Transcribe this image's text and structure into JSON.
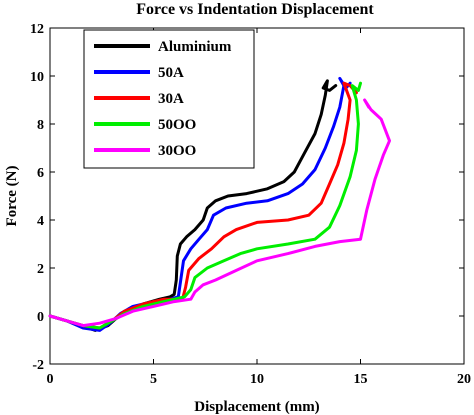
{
  "chart_data": {
    "type": "line",
    "title": "Force vs Indentation Displacement",
    "xlabel": "Displacement (mm)",
    "ylabel": "Force (N)",
    "xlim": [
      0,
      20
    ],
    "ylim": [
      -2,
      12
    ],
    "x_ticks": [
      "0",
      "5",
      "10",
      "15",
      "20"
    ],
    "y_ticks": [
      "-2",
      "0",
      "2",
      "4",
      "6",
      "8",
      "10",
      "12"
    ],
    "legend_position": "top-left",
    "grid": false,
    "series": [
      {
        "name": "Aluminium",
        "color": "#000000",
        "points": [
          [
            0,
            0
          ],
          [
            0.8,
            -0.2
          ],
          [
            1.5,
            -0.4
          ],
          [
            2.2,
            -0.6
          ],
          [
            2.8,
            -0.4
          ],
          [
            3.2,
            -0.1
          ],
          [
            3.8,
            0.2
          ],
          [
            4.5,
            0.5
          ],
          [
            5.3,
            0.7
          ],
          [
            5.8,
            0.8
          ],
          [
            6.0,
            0.9
          ],
          [
            6.1,
            1.5
          ],
          [
            6.15,
            2.5
          ],
          [
            6.3,
            3.0
          ],
          [
            6.6,
            3.3
          ],
          [
            7.0,
            3.6
          ],
          [
            7.4,
            4.0
          ],
          [
            7.6,
            4.5
          ],
          [
            8.0,
            4.8
          ],
          [
            8.6,
            5.0
          ],
          [
            9.5,
            5.1
          ],
          [
            10.5,
            5.3
          ],
          [
            11.3,
            5.6
          ],
          [
            11.8,
            6.0
          ],
          [
            12.3,
            6.8
          ],
          [
            12.8,
            7.6
          ],
          [
            13.1,
            8.4
          ],
          [
            13.3,
            9.2
          ],
          [
            13.4,
            9.8
          ],
          [
            13.2,
            9.5
          ],
          [
            13.5,
            9.4
          ],
          [
            13.8,
            9.6
          ]
        ]
      },
      {
        "name": "50A",
        "color": "#0000ff",
        "points": [
          [
            0,
            0
          ],
          [
            0.8,
            -0.2
          ],
          [
            1.6,
            -0.5
          ],
          [
            2.4,
            -0.6
          ],
          [
            2.9,
            -0.3
          ],
          [
            3.4,
            0.1
          ],
          [
            4.0,
            0.4
          ],
          [
            5.0,
            0.6
          ],
          [
            5.8,
            0.7
          ],
          [
            6.2,
            0.8
          ],
          [
            6.3,
            1.4
          ],
          [
            6.45,
            2.3
          ],
          [
            6.8,
            2.8
          ],
          [
            7.2,
            3.2
          ],
          [
            7.6,
            3.6
          ],
          [
            7.9,
            4.2
          ],
          [
            8.5,
            4.5
          ],
          [
            9.5,
            4.7
          ],
          [
            10.5,
            4.8
          ],
          [
            11.5,
            5.1
          ],
          [
            12.2,
            5.5
          ],
          [
            12.8,
            6.1
          ],
          [
            13.3,
            7.0
          ],
          [
            13.7,
            7.9
          ],
          [
            14.0,
            8.7
          ],
          [
            14.2,
            9.6
          ],
          [
            14.0,
            9.9
          ],
          [
            14.3,
            9.5
          ],
          [
            14.5,
            9.7
          ]
        ]
      },
      {
        "name": "30A",
        "color": "#ff0000",
        "points": [
          [
            0,
            0
          ],
          [
            0.8,
            -0.2
          ],
          [
            1.6,
            -0.4
          ],
          [
            2.4,
            -0.5
          ],
          [
            3.0,
            -0.2
          ],
          [
            3.6,
            0.2
          ],
          [
            4.5,
            0.5
          ],
          [
            5.5,
            0.7
          ],
          [
            6.4,
            0.7
          ],
          [
            6.55,
            1.2
          ],
          [
            6.7,
            1.9
          ],
          [
            7.2,
            2.4
          ],
          [
            7.8,
            2.8
          ],
          [
            8.4,
            3.3
          ],
          [
            9.0,
            3.6
          ],
          [
            10.0,
            3.9
          ],
          [
            11.5,
            4.0
          ],
          [
            12.5,
            4.2
          ],
          [
            13.1,
            4.7
          ],
          [
            13.5,
            5.5
          ],
          [
            13.9,
            6.3
          ],
          [
            14.2,
            7.2
          ],
          [
            14.4,
            8.2
          ],
          [
            14.5,
            9.0
          ],
          [
            14.2,
            9.7
          ],
          [
            14.5,
            9.6
          ],
          [
            14.8,
            9.3
          ]
        ]
      },
      {
        "name": "50OO",
        "color": "#00ee00",
        "points": [
          [
            0,
            0
          ],
          [
            0.8,
            -0.2
          ],
          [
            1.6,
            -0.4
          ],
          [
            2.4,
            -0.5
          ],
          [
            3.0,
            -0.2
          ],
          [
            3.6,
            0.1
          ],
          [
            4.5,
            0.4
          ],
          [
            5.5,
            0.6
          ],
          [
            6.5,
            0.8
          ],
          [
            6.8,
            1.1
          ],
          [
            7.0,
            1.6
          ],
          [
            7.6,
            2.0
          ],
          [
            8.4,
            2.3
          ],
          [
            9.2,
            2.6
          ],
          [
            10.0,
            2.8
          ],
          [
            11.5,
            3.0
          ],
          [
            12.8,
            3.2
          ],
          [
            13.5,
            3.7
          ],
          [
            14.0,
            4.6
          ],
          [
            14.5,
            5.8
          ],
          [
            14.8,
            6.9
          ],
          [
            14.9,
            8.0
          ],
          [
            14.8,
            9.0
          ],
          [
            14.6,
            9.6
          ],
          [
            14.9,
            9.4
          ],
          [
            15.0,
            9.7
          ]
        ]
      },
      {
        "name": "30OO",
        "color": "#ff00ff",
        "points": [
          [
            0,
            0
          ],
          [
            0.8,
            -0.2
          ],
          [
            1.6,
            -0.4
          ],
          [
            2.4,
            -0.3
          ],
          [
            3.2,
            -0.1
          ],
          [
            4.0,
            0.2
          ],
          [
            5.0,
            0.4
          ],
          [
            6.0,
            0.6
          ],
          [
            6.8,
            0.7
          ],
          [
            7.0,
            1.0
          ],
          [
            7.4,
            1.3
          ],
          [
            8.0,
            1.5
          ],
          [
            9.0,
            1.9
          ],
          [
            10.0,
            2.3
          ],
          [
            11.5,
            2.6
          ],
          [
            12.8,
            2.9
          ],
          [
            14.0,
            3.1
          ],
          [
            15.0,
            3.2
          ],
          [
            15.3,
            4.4
          ],
          [
            15.7,
            5.7
          ],
          [
            16.1,
            6.7
          ],
          [
            16.4,
            7.3
          ],
          [
            16.0,
            8.2
          ],
          [
            15.5,
            8.6
          ],
          [
            15.2,
            9.0
          ],
          [
            15.4,
            8.7
          ]
        ]
      }
    ]
  }
}
